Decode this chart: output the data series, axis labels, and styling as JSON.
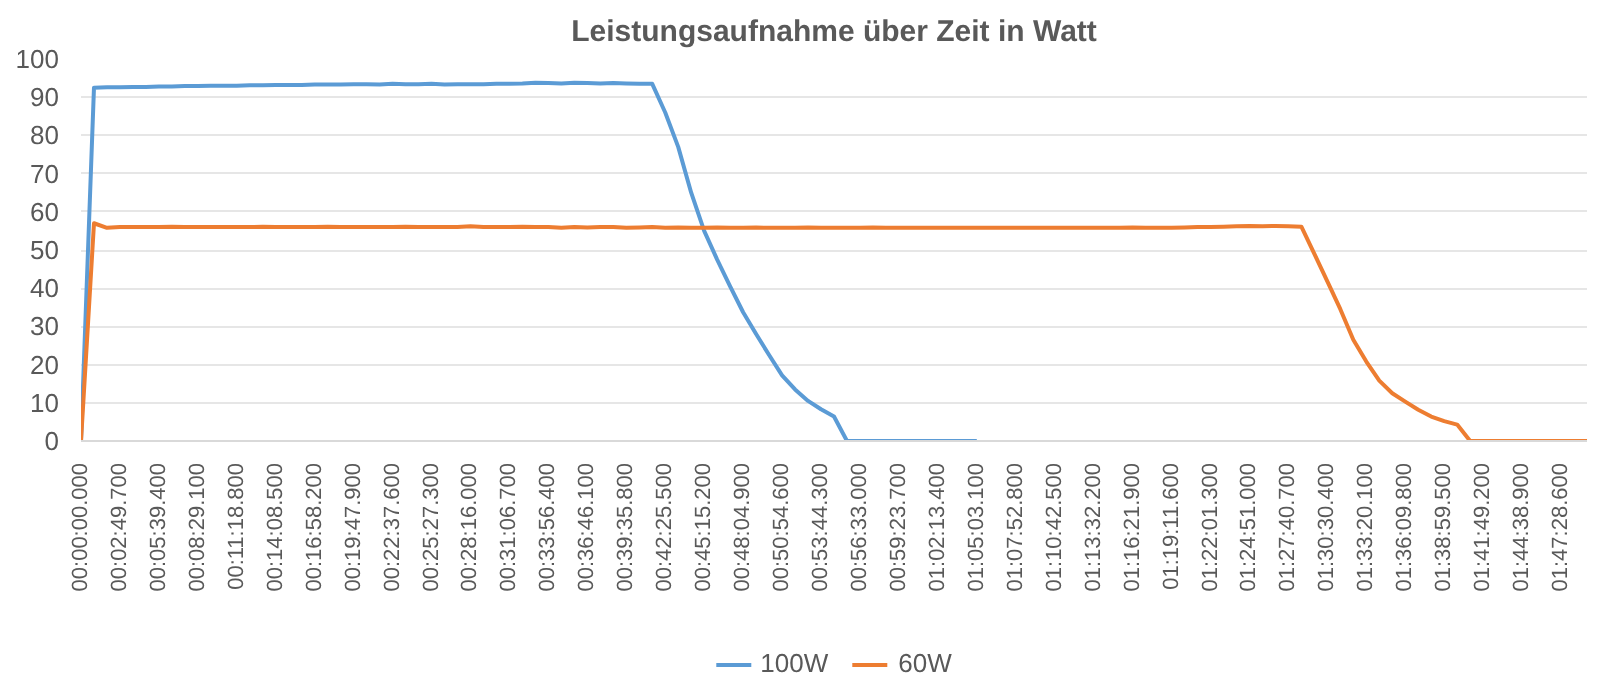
{
  "chart_data": {
    "type": "line",
    "title": "Leistungsaufnahme über Zeit in Watt",
    "categories": [
      "00:00:00.000",
      null,
      null,
      "00:02:49.700",
      null,
      null,
      "00:05:39.400",
      null,
      null,
      "00:08:29.100",
      null,
      null,
      "00:11:18.800",
      null,
      null,
      "00:14:08.500",
      null,
      null,
      "00:16:58.200",
      null,
      null,
      "00:19:47.900",
      null,
      null,
      "00:22:37.600",
      null,
      null,
      "00:25:27.300",
      null,
      null,
      "00:28:16.000",
      null,
      null,
      "00:31:06.700",
      null,
      null,
      "00:33:56.400",
      null,
      null,
      "00:36:46.100",
      null,
      null,
      "00:39:35.800",
      null,
      null,
      "00:42:25.500",
      null,
      null,
      "00:45:15.200",
      null,
      null,
      "00:48:04.900",
      null,
      null,
      "00:50:54.600",
      null,
      null,
      "00:53:44.300",
      null,
      null,
      "00:56:33.000",
      null,
      null,
      "00:59:23.700",
      null,
      null,
      "01:02:13.400",
      null,
      null,
      "01:05:03.100",
      null,
      null,
      "01:07:52.800",
      null,
      null,
      "01:10:42.500",
      null,
      null,
      "01:13:32.200",
      null,
      null,
      "01:16:21.900",
      null,
      null,
      "01:19:11.600",
      null,
      null,
      "01:22:01.300",
      null,
      null,
      "01:24:51.000",
      null,
      null,
      "01:27:40.700",
      null,
      null,
      "01:30:30.400",
      null,
      null,
      "01:33:20.100",
      null,
      null,
      "01:36:09.800",
      null,
      null,
      "01:38:59.500",
      null,
      null,
      "01:41:49.200",
      null,
      null,
      "01:44:38.900",
      null,
      null,
      "01:47:28.600",
      null,
      null
    ],
    "ylim": [
      0,
      100
    ],
    "yticks": [
      0,
      10,
      20,
      30,
      40,
      50,
      60,
      70,
      80,
      90,
      100
    ],
    "grid": "y",
    "legend": "bottom",
    "series": [
      {
        "name": "100W",
        "color": "#5b9bd5",
        "values": [
          0,
          92.5,
          92.6,
          92.6,
          92.7,
          92.7,
          92.8,
          92.8,
          92.9,
          92.9,
          93,
          93,
          93,
          93.1,
          93.1,
          93.2,
          93.2,
          93.2,
          93.3,
          93.3,
          93.3,
          93.4,
          93.4,
          93.3,
          93.5,
          93.4,
          93.4,
          93.5,
          93.3,
          93.4,
          93.4,
          93.4,
          93.5,
          93.5,
          93.6,
          93.8,
          93.7,
          93.6,
          93.8,
          93.7,
          93.6,
          93.7,
          93.6,
          93.5,
          93.5,
          86,
          77,
          65,
          55,
          47.5,
          40.5,
          33.7,
          28,
          22.5,
          17.2,
          13.5,
          10.5,
          8.3,
          6.4,
          0,
          0,
          0,
          0,
          0,
          0,
          0,
          0,
          0,
          0,
          0,
          null,
          null,
          null,
          null,
          null,
          null,
          null,
          null,
          null,
          null,
          null,
          null,
          null,
          null,
          null,
          null,
          null,
          null,
          null,
          null,
          null,
          null,
          null,
          null,
          null,
          null,
          null,
          null,
          null,
          null,
          null,
          null,
          null,
          null,
          null,
          null,
          null,
          null,
          null,
          null,
          null,
          null,
          null,
          null,
          null,
          null,
          null
        ]
      },
      {
        "name": "60W",
        "color": "#ed7d31",
        "values": [
          0,
          57,
          55.8,
          56,
          56,
          56,
          56,
          56.1,
          56,
          56,
          56,
          56,
          56,
          56,
          56.1,
          56,
          56,
          56,
          56,
          56.1,
          56,
          56,
          56,
          56,
          56,
          56.1,
          56,
          56,
          56,
          56,
          56.2,
          56,
          56,
          56,
          56.1,
          56,
          56,
          55.8,
          56,
          55.9,
          56,
          56,
          55.8,
          55.9,
          56,
          55.8,
          55.9,
          55.8,
          55.8,
          55.9,
          55.8,
          55.8,
          55.9,
          55.8,
          55.8,
          55.8,
          55.9,
          55.8,
          55.8,
          55.8,
          55.8,
          55.9,
          55.8,
          55.8,
          55.8,
          55.8,
          55.8,
          55.8,
          55.8,
          55.8,
          55.8,
          55.8,
          55.8,
          55.8,
          55.8,
          55.8,
          55.8,
          55.8,
          55.8,
          55.8,
          55.8,
          55.9,
          55.8,
          55.8,
          55.8,
          55.9,
          56,
          56,
          56.1,
          56.2,
          56.3,
          56.2,
          56.3,
          56.2,
          56.1,
          49,
          41.8,
          34.5,
          26.5,
          20.8,
          15.8,
          12.5,
          10.3,
          8.2,
          6.4,
          5.2,
          4.3,
          0,
          0,
          0,
          0,
          0,
          0,
          0,
          0,
          0,
          0
        ]
      }
    ]
  }
}
